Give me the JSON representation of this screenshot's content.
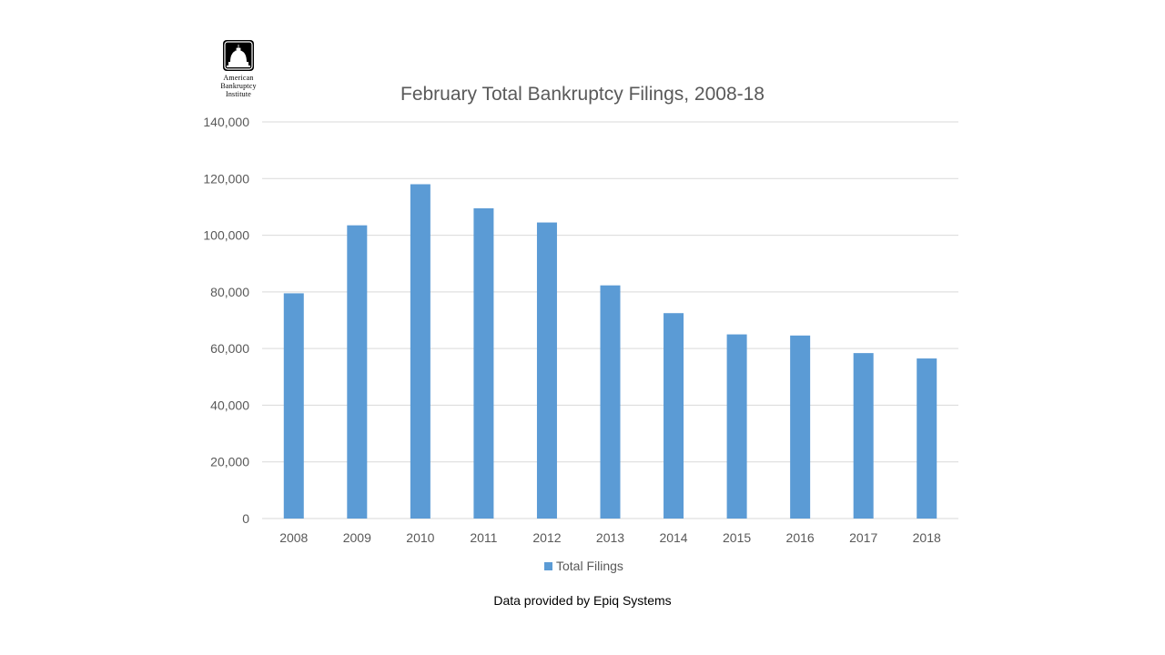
{
  "logo": {
    "line1": "American",
    "line2": "Bankruptcy",
    "line3": "Institute"
  },
  "source_note": "Data provided by Epiq Systems",
  "colors": {
    "bar": "#5b9bd5",
    "grid": "#d9d9d9",
    "axis_text": "#595959",
    "title_text": "#595959"
  },
  "chart_data": {
    "type": "bar",
    "title": "February Total Bankruptcy Filings, 2008-18",
    "xlabel": "",
    "ylabel": "",
    "categories": [
      "2008",
      "2009",
      "2010",
      "2011",
      "2012",
      "2013",
      "2014",
      "2015",
      "2016",
      "2017",
      "2018"
    ],
    "series": [
      {
        "name": "Total Filings",
        "values": [
          79500,
          103500,
          118000,
          109500,
          104500,
          82300,
          72500,
          65000,
          64600,
          58400,
          56500
        ]
      }
    ],
    "ylim": [
      0,
      140000
    ],
    "yticks": [
      0,
      20000,
      40000,
      60000,
      80000,
      100000,
      120000,
      140000
    ],
    "ytick_labels": [
      "0",
      "20,000",
      "40,000",
      "60,000",
      "80,000",
      "100,000",
      "120,000",
      "140,000"
    ],
    "grid": true,
    "legend_position": "bottom"
  }
}
